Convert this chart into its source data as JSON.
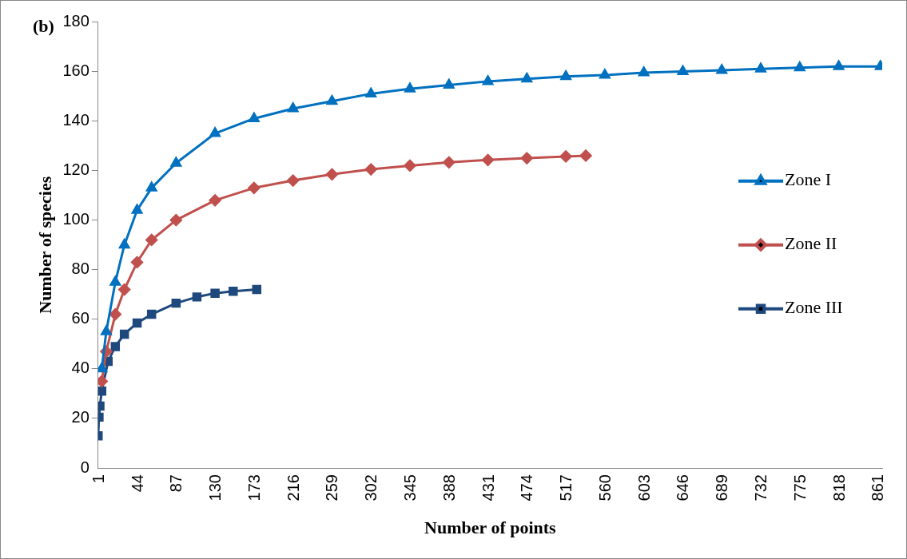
{
  "chart_data": {
    "type": "line",
    "title": "(b)",
    "xlabel": "Number of points",
    "ylabel": "Number of species",
    "xlim": [
      1,
      866
    ],
    "xticks": [
      1,
      44,
      87,
      130,
      173,
      216,
      259,
      302,
      345,
      388,
      431,
      474,
      517,
      560,
      603,
      646,
      689,
      732,
      775,
      818,
      861
    ],
    "ylim": [
      0,
      180
    ],
    "yticks": [
      0,
      20,
      40,
      60,
      80,
      100,
      120,
      140,
      160,
      180
    ],
    "grid": false,
    "legend": "right",
    "series": [
      {
        "name": "Zone I",
        "color": "#0070c0",
        "marker": "triangle",
        "x": [
          5,
          10,
          20,
          30,
          44,
          60,
          87,
          130,
          173,
          216,
          259,
          302,
          345,
          388,
          431,
          474,
          517,
          560,
          603,
          646,
          689,
          732,
          775,
          818,
          864
        ],
        "values": [
          40,
          55,
          75,
          90,
          104,
          113,
          123,
          135,
          141,
          145,
          148,
          151,
          153,
          154.5,
          156,
          157,
          158,
          158.5,
          159.5,
          160,
          160.5,
          161,
          161.5,
          162,
          162
        ]
      },
      {
        "name": "Zone II",
        "color": "#c0504d",
        "marker": "diamond",
        "x": [
          5,
          10,
          20,
          30,
          44,
          60,
          87,
          130,
          173,
          216,
          259,
          302,
          345,
          388,
          431,
          474,
          517,
          539
        ],
        "values": [
          35,
          47,
          62,
          72,
          83,
          92,
          100,
          108,
          113,
          116,
          118.5,
          120.5,
          122,
          123.3,
          124.3,
          125,
          125.7,
          126
        ]
      },
      {
        "name": "Zone III",
        "color": "#1f497d",
        "marker": "square",
        "x": [
          1,
          2,
          3,
          5,
          12,
          20,
          30,
          44,
          60,
          87,
          110,
          130,
          150,
          176
        ],
        "values": [
          13,
          20.5,
          25,
          31,
          43,
          49,
          54,
          58.5,
          62,
          66.5,
          69,
          70.5,
          71.3,
          72
        ]
      }
    ]
  }
}
